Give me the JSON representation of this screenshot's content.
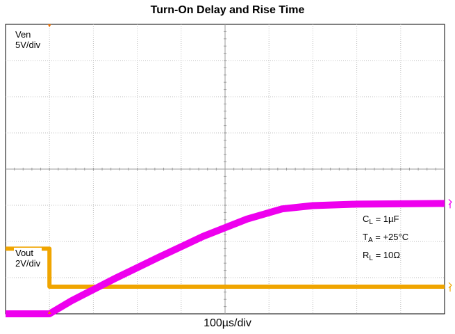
{
  "chart_data": {
    "type": "line",
    "title": "Turn-On Delay and Rise Time",
    "xlabel": "100µs/div",
    "x_divisions": 10,
    "y_divisions": 8,
    "grid": true,
    "series": [
      {
        "name": "Ven",
        "scale": "5V/div",
        "color": "#f0a500",
        "x_div": [
          0,
          1,
          1,
          10
        ],
        "y_div": [
          1.8,
          1.8,
          0.75,
          0.75
        ]
      },
      {
        "name": "Vout",
        "scale": "2V/div",
        "color": "#ee00ee",
        "x_div": [
          0,
          1,
          1.5,
          2.5,
          3.5,
          4.5,
          5.5,
          6.3,
          7,
          8,
          9,
          10
        ],
        "y_div": [
          0,
          0,
          0.36,
          0.98,
          1.57,
          2.14,
          2.62,
          2.9,
          2.99,
          3.03,
          3.04,
          3.05
        ]
      }
    ],
    "annotations": [
      {
        "var": "C",
        "sub": "L",
        "rest": " = 1µF"
      },
      {
        "var": "T",
        "sub": "A",
        "rest": " = +25°C"
      },
      {
        "var": "R",
        "sub": "L",
        "rest": " = 10Ω"
      }
    ]
  }
}
